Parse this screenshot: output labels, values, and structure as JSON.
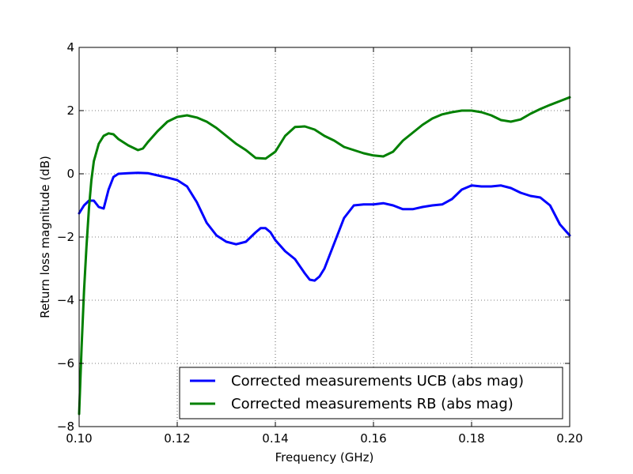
{
  "chart_data": {
    "type": "line",
    "title": "",
    "xlabel": "Frequency (GHz)",
    "ylabel": "Return loss magnitude (dB)",
    "xlim": [
      0.1,
      0.2
    ],
    "ylim": [
      -8,
      4
    ],
    "xticks": [
      0.1,
      0.12,
      0.14,
      0.16,
      0.18,
      0.2
    ],
    "xtick_labels": [
      "0.10",
      "0.12",
      "0.14",
      "0.16",
      "0.18",
      "0.20"
    ],
    "yticks": [
      -8,
      -6,
      -4,
      -2,
      0,
      2,
      4
    ],
    "ytick_labels": [
      "−8",
      "−6",
      "−4",
      "−2",
      "0",
      "2",
      "4"
    ],
    "grid": true,
    "legend_position": "bottom-right",
    "series": [
      {
        "name": "Corrected measurements UCB (abs mag)",
        "color": "#0000ff",
        "x": [
          0.1,
          0.101,
          0.102,
          0.103,
          0.104,
          0.105,
          0.106,
          0.107,
          0.108,
          0.11,
          0.112,
          0.114,
          0.116,
          0.118,
          0.12,
          0.122,
          0.124,
          0.126,
          0.128,
          0.13,
          0.132,
          0.134,
          0.136,
          0.137,
          0.138,
          0.139,
          0.14,
          0.142,
          0.144,
          0.146,
          0.147,
          0.148,
          0.149,
          0.15,
          0.152,
          0.154,
          0.156,
          0.158,
          0.16,
          0.162,
          0.164,
          0.166,
          0.168,
          0.17,
          0.172,
          0.174,
          0.176,
          0.178,
          0.18,
          0.182,
          0.184,
          0.186,
          0.188,
          0.19,
          0.192,
          0.194,
          0.196,
          0.198,
          0.2
        ],
        "y": [
          -1.25,
          -1.0,
          -0.85,
          -0.85,
          -1.05,
          -1.1,
          -0.5,
          -0.1,
          0.0,
          0.02,
          0.03,
          0.02,
          -0.05,
          -0.12,
          -0.2,
          -0.4,
          -0.9,
          -1.55,
          -1.95,
          -2.15,
          -2.23,
          -2.15,
          -1.85,
          -1.72,
          -1.72,
          -1.85,
          -2.1,
          -2.45,
          -2.7,
          -3.15,
          -3.35,
          -3.38,
          -3.25,
          -3.0,
          -2.2,
          -1.4,
          -1.0,
          -0.97,
          -0.97,
          -0.93,
          -1.0,
          -1.12,
          -1.12,
          -1.05,
          -1.0,
          -0.97,
          -0.8,
          -0.5,
          -0.37,
          -0.4,
          -0.4,
          -0.37,
          -0.45,
          -0.6,
          -0.7,
          -0.75,
          -1.0,
          -1.6,
          -1.95
        ]
      },
      {
        "name": "Corrected measurements RB (abs mag)",
        "color": "#008000",
        "x": [
          0.1,
          0.1005,
          0.101,
          0.1015,
          0.102,
          0.1025,
          0.103,
          0.104,
          0.105,
          0.106,
          0.107,
          0.108,
          0.11,
          0.112,
          0.113,
          0.114,
          0.116,
          0.118,
          0.12,
          0.122,
          0.124,
          0.126,
          0.128,
          0.13,
          0.132,
          0.134,
          0.136,
          0.138,
          0.14,
          0.142,
          0.144,
          0.146,
          0.148,
          0.15,
          0.152,
          0.154,
          0.156,
          0.158,
          0.16,
          0.162,
          0.164,
          0.166,
          0.168,
          0.17,
          0.172,
          0.174,
          0.176,
          0.178,
          0.18,
          0.182,
          0.184,
          0.186,
          0.188,
          0.19,
          0.192,
          0.194,
          0.196,
          0.198,
          0.2
        ],
        "y": [
          -7.6,
          -5.5,
          -3.7,
          -2.3,
          -1.1,
          -0.2,
          0.4,
          0.95,
          1.2,
          1.28,
          1.25,
          1.1,
          0.9,
          0.75,
          0.8,
          1.0,
          1.35,
          1.65,
          1.8,
          1.85,
          1.78,
          1.65,
          1.45,
          1.2,
          0.95,
          0.75,
          0.5,
          0.48,
          0.7,
          1.2,
          1.48,
          1.5,
          1.4,
          1.2,
          1.05,
          0.85,
          0.75,
          0.65,
          0.58,
          0.55,
          0.7,
          1.05,
          1.3,
          1.55,
          1.75,
          1.88,
          1.95,
          2.0,
          2.0,
          1.95,
          1.85,
          1.7,
          1.65,
          1.72,
          1.9,
          2.05,
          2.18,
          2.3,
          2.42
        ]
      }
    ]
  }
}
